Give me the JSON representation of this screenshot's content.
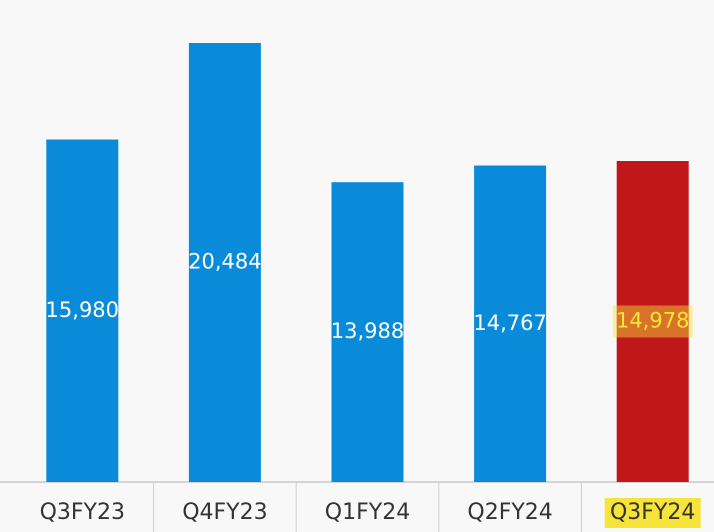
{
  "chart_data": {
    "type": "bar",
    "categories": [
      "Q3FY23",
      "Q4FY23",
      "Q1FY24",
      "Q2FY24",
      "Q3FY24"
    ],
    "values": [
      15980,
      20484,
      13988,
      14767,
      14978
    ],
    "value_labels": [
      "15,980",
      "20,484",
      "13,988",
      "14,767",
      "14,978"
    ],
    "colors": [
      "#0a8bd9",
      "#0a8bd9",
      "#0a8bd9",
      "#0a8bd9",
      "#c0171b"
    ],
    "highlighted": [
      false,
      false,
      false,
      false,
      true
    ],
    "highlight_color": "#f7e43a"
  }
}
